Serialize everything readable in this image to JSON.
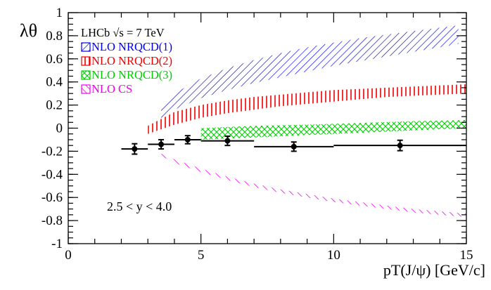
{
  "chart_data": {
    "type": "scatter",
    "title": "",
    "experiment_label": "LHCb",
    "energy_label": "√s = 7 TeV",
    "annotation": "2.5 < y < 4.0",
    "xlabel": "pT(J/ψ) [GeV/c]",
    "ylabel": "λθ",
    "xlim": [
      0,
      15
    ],
    "ylim": [
      -1,
      1
    ],
    "x_ticks": [
      0,
      5,
      10,
      15
    ],
    "x_tick_labels": [
      "0",
      "5",
      "10",
      "15"
    ],
    "y_ticks": [
      -1,
      -0.8,
      -0.6,
      -0.4,
      -0.2,
      0,
      0.2,
      0.4,
      0.6,
      0.8,
      1
    ],
    "y_tick_labels": [
      "-1",
      "-0.8",
      "-0.6",
      "-0.4",
      "-0.2",
      "0",
      "0.2",
      "0.4",
      "0.6",
      "0.8",
      "1"
    ],
    "data": {
      "name": "LHCb data",
      "color": "#000000",
      "points": [
        {
          "x": 2.5,
          "xlo": 2,
          "xhi": 3,
          "y": -0.18,
          "yerr": 0.045
        },
        {
          "x": 3.5,
          "xlo": 3,
          "xhi": 4,
          "y": -0.14,
          "yerr": 0.04
        },
        {
          "x": 4.5,
          "xlo": 4,
          "xhi": 5,
          "y": -0.1,
          "yerr": 0.035
        },
        {
          "x": 6.0,
          "xlo": 5,
          "xhi": 7,
          "y": -0.11,
          "yerr": 0.04
        },
        {
          "x": 8.5,
          "xlo": 7,
          "xhi": 10,
          "y": -0.16,
          "yerr": 0.04
        },
        {
          "x": 12.5,
          "xlo": 10,
          "xhi": 15,
          "y": -0.15,
          "yerr": 0.045
        }
      ]
    },
    "bands": [
      {
        "name": "NLO NRQCD(1)",
        "color": "#0000ee",
        "hatch": "diagonal",
        "x": [
          3.5,
          4,
          5,
          6,
          7,
          8,
          9,
          10,
          11,
          12,
          13,
          14,
          14.7
        ],
        "low": [
          0.07,
          0.16,
          0.26,
          0.33,
          0.39,
          0.44,
          0.49,
          0.54,
          0.58,
          0.62,
          0.66,
          0.7,
          0.73
        ],
        "high": [
          0.2,
          0.3,
          0.43,
          0.52,
          0.59,
          0.65,
          0.7,
          0.74,
          0.78,
          0.81,
          0.84,
          0.87,
          0.89
        ]
      },
      {
        "name": "NLO NRQCD(2)",
        "color": "#ee0000",
        "hatch": "vertical",
        "x": [
          3,
          4,
          5,
          6,
          7,
          8,
          9,
          10,
          11,
          12,
          13,
          14,
          15
        ],
        "low": [
          -0.05,
          0.03,
          0.09,
          0.13,
          0.16,
          0.19,
          0.21,
          0.23,
          0.25,
          0.27,
          0.28,
          0.29,
          0.3
        ],
        "high": [
          0.02,
          0.14,
          0.2,
          0.24,
          0.27,
          0.29,
          0.31,
          0.33,
          0.34,
          0.35,
          0.36,
          0.37,
          0.38
        ]
      },
      {
        "name": "NLO NRQCD(3)",
        "color": "#00cc00",
        "hatch": "cross",
        "x": [
          5,
          7,
          9,
          11,
          13,
          15
        ],
        "low": [
          -0.1,
          -0.08,
          -0.06,
          -0.04,
          -0.02,
          0.0
        ],
        "high": [
          0.0,
          0.02,
          0.03,
          0.045,
          0.06,
          0.07
        ]
      },
      {
        "name": "NLO CS",
        "color": "#ee00ee",
        "hatch": "diagonal",
        "x": [
          3.5,
          4,
          5,
          6,
          7,
          8,
          9,
          10,
          11,
          12,
          13,
          14,
          15
        ],
        "low": [
          -0.24,
          -0.3,
          -0.38,
          -0.45,
          -0.51,
          -0.56,
          -0.6,
          -0.64,
          -0.67,
          -0.7,
          -0.73,
          -0.75,
          -0.77
        ],
        "high": [
          -0.22,
          -0.27,
          -0.35,
          -0.42,
          -0.48,
          -0.53,
          -0.57,
          -0.61,
          -0.64,
          -0.67,
          -0.7,
          -0.72,
          -0.74
        ]
      }
    ]
  }
}
